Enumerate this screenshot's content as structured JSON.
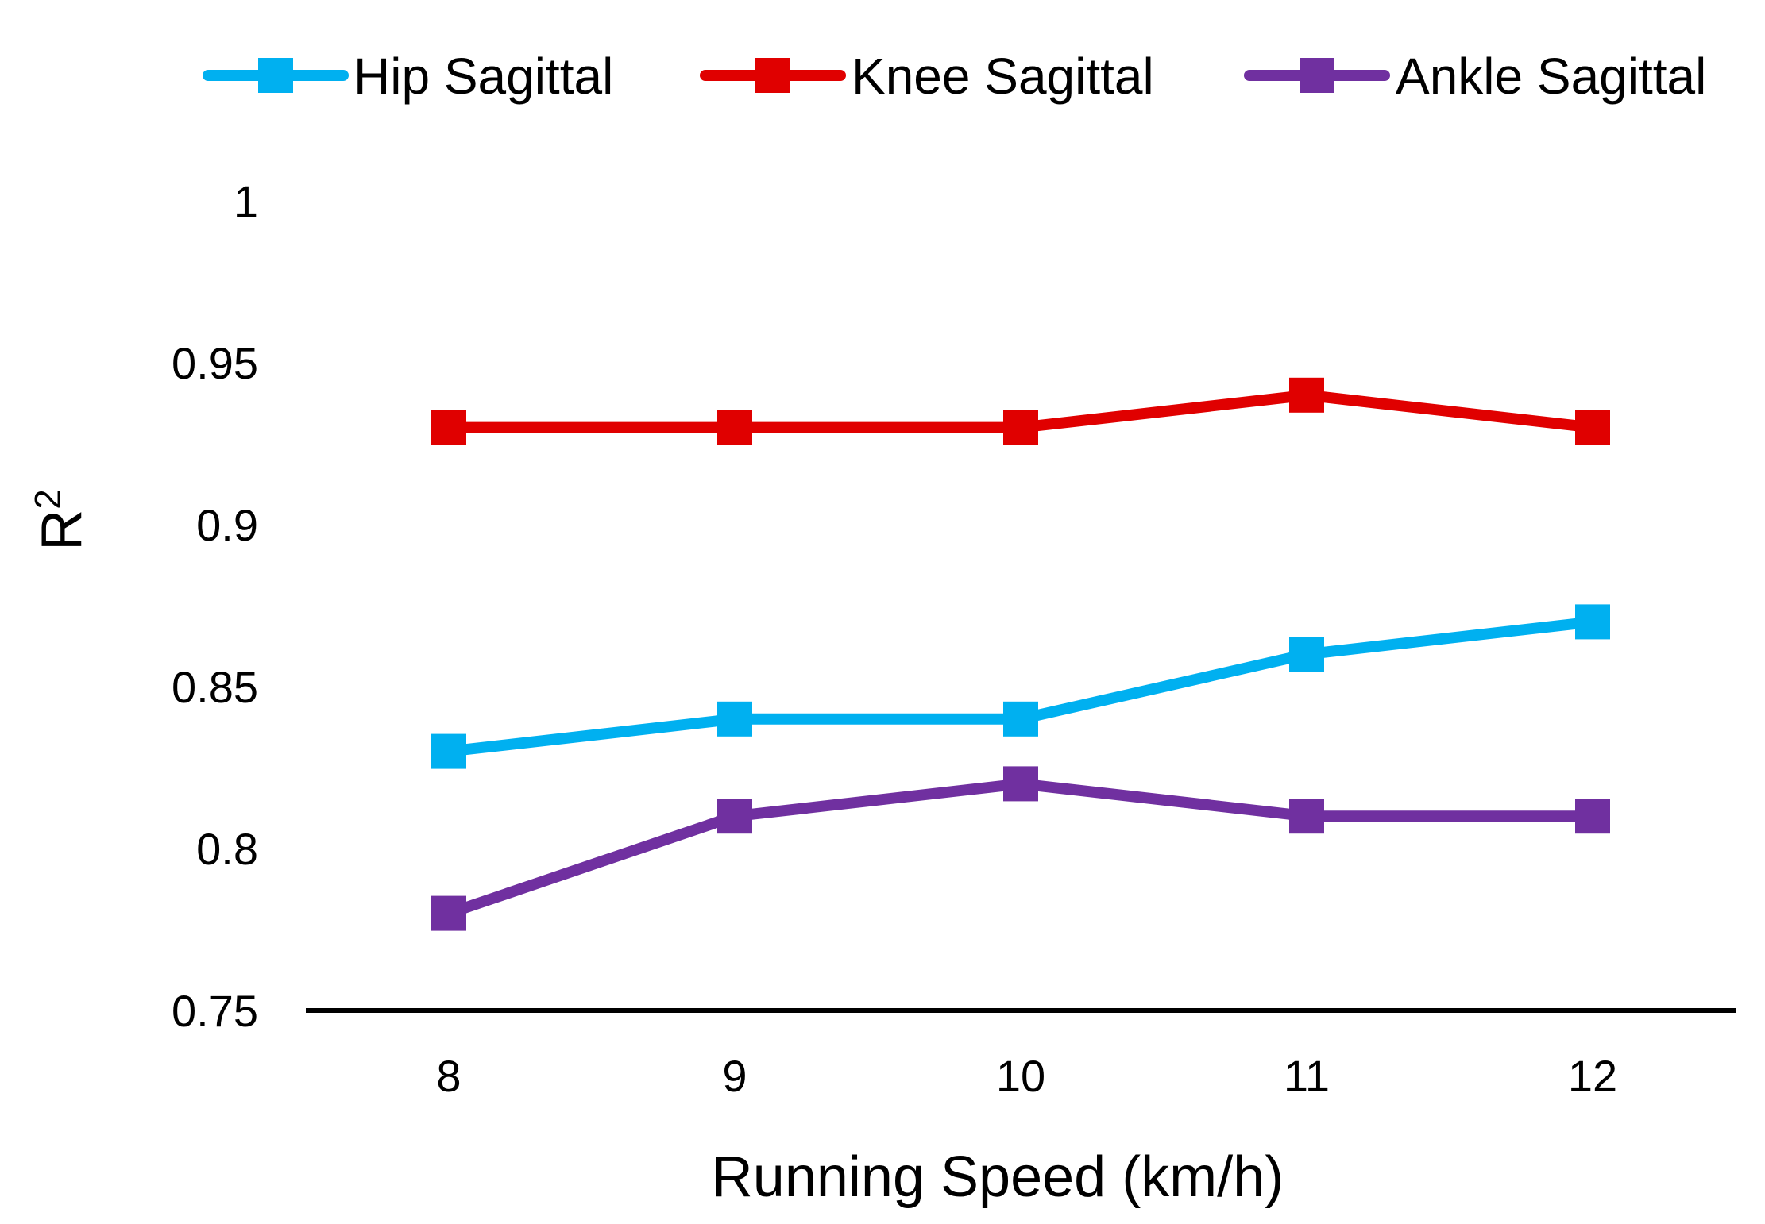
{
  "chart_data": {
    "type": "line",
    "title": "",
    "xlabel": "Running Speed (km/h)",
    "ylabel": "R",
    "ylabel_superscript": "2",
    "categories": [
      "8",
      "9",
      "10",
      "11",
      "12"
    ],
    "x": [
      8,
      9,
      10,
      11,
      12
    ],
    "ylim": [
      0.75,
      1
    ],
    "yticks": [
      "0.75",
      "0.8",
      "0.85",
      "0.9",
      "0.95",
      "1"
    ],
    "ytick_values": [
      0.75,
      0.8,
      0.85,
      0.9,
      0.95,
      1.0
    ],
    "grid": false,
    "legend_position": "top",
    "series": [
      {
        "name": "Hip Sagittal",
        "color": "#00b0f0",
        "marker": "square",
        "values": [
          0.83,
          0.84,
          0.84,
          0.86,
          0.87
        ]
      },
      {
        "name": "Knee Sagittal",
        "color": "#e00000",
        "marker": "square",
        "values": [
          0.93,
          0.93,
          0.93,
          0.94,
          0.93
        ]
      },
      {
        "name": "Ankle Sagittal",
        "color": "#7030a0",
        "marker": "square",
        "values": [
          0.78,
          0.81,
          0.82,
          0.81,
          0.81
        ]
      }
    ]
  }
}
